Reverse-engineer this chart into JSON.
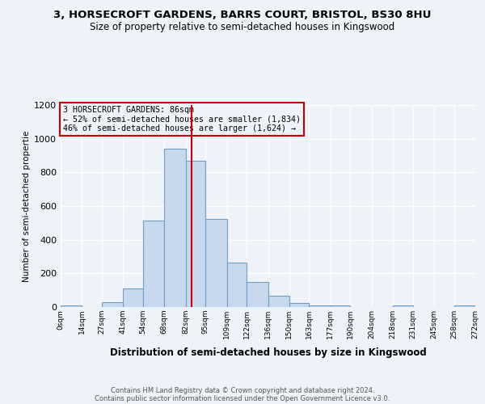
{
  "title_line1": "3, HORSECROFT GARDENS, BARRS COURT, BRISTOL, BS30 8HU",
  "title_line2": "Size of property relative to semi-detached houses in Kingswood",
  "xlabel": "Distribution of semi-detached houses by size in Kingswood",
  "ylabel": "Number of semi-detached propertie",
  "footer_line1": "Contains HM Land Registry data © Crown copyright and database right 2024.",
  "footer_line2": "Contains public sector information licensed under the Open Government Licence v3.0.",
  "annotation_title": "3 HORSECROFT GARDENS: 86sqm",
  "annotation_line1": "← 52% of semi-detached houses are smaller (1,834)",
  "annotation_line2": "46% of semi-detached houses are larger (1,624) →",
  "bar_edges": [
    0,
    14,
    27,
    41,
    54,
    68,
    82,
    95,
    109,
    122,
    136,
    150,
    163,
    177,
    190,
    204,
    218,
    231,
    245,
    258,
    272
  ],
  "bar_heights": [
    8,
    2,
    28,
    110,
    515,
    940,
    870,
    525,
    265,
    150,
    65,
    25,
    10,
    8,
    1,
    0,
    8,
    0,
    0,
    8
  ],
  "tick_labels": [
    "0sqm",
    "14sqm",
    "27sqm",
    "41sqm",
    "54sqm",
    "68sqm",
    "82sqm",
    "95sqm",
    "109sqm",
    "122sqm",
    "136sqm",
    "150sqm",
    "163sqm",
    "177sqm",
    "190sqm",
    "204sqm",
    "218sqm",
    "231sqm",
    "245sqm",
    "258sqm",
    "272sqm"
  ],
  "property_size": 86,
  "bar_facecolor": "#c9d9ed",
  "bar_edgecolor": "#6e9dc8",
  "vline_color": "#cc0000",
  "annotation_box_edgecolor": "#cc0000",
  "background_color": "#eef2f9",
  "ylim": [
    0,
    1200
  ],
  "yticks": [
    0,
    200,
    400,
    600,
    800,
    1000,
    1200
  ]
}
